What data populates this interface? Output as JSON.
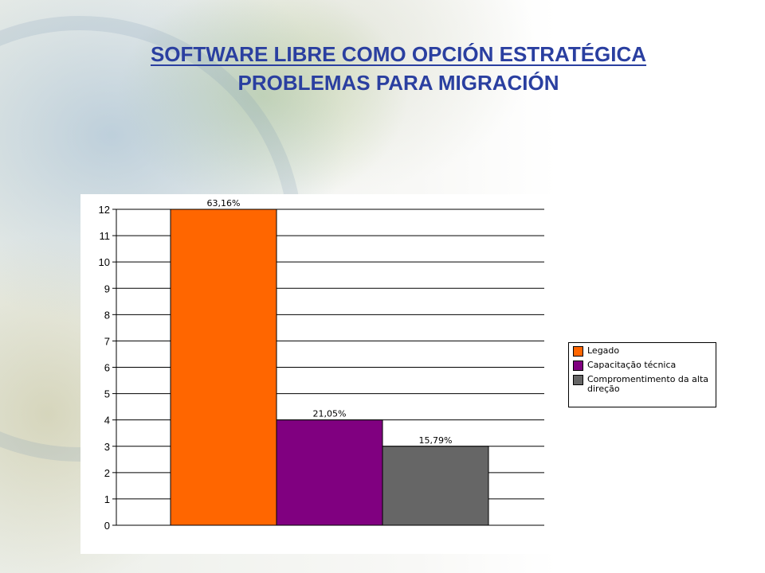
{
  "slide": {
    "title_line1": "SOFTWARE LIBRE COMO OPCIÓN ESTRATÉGICA",
    "title_line2": "PROBLEMAS PARA MIGRACIÓN",
    "title_color": "#2a3fa0"
  },
  "chart_data": {
    "type": "bar",
    "title": "",
    "xlabel": "",
    "ylabel": "",
    "ylim": [
      0,
      12
    ],
    "yticks": [
      0,
      1,
      2,
      3,
      4,
      5,
      6,
      7,
      8,
      9,
      10,
      11,
      12
    ],
    "grid": true,
    "legend_position": "right",
    "series": [
      {
        "name": "Legado",
        "value": 12,
        "label": "63,16%",
        "color": "#ff6600"
      },
      {
        "name": "Capacitação técnica",
        "value": 4,
        "label": "21,05%",
        "color": "#800080"
      },
      {
        "name": "Compromentimento da alta direção",
        "value": 3,
        "label": "15,79%",
        "color": "#666666"
      }
    ]
  }
}
